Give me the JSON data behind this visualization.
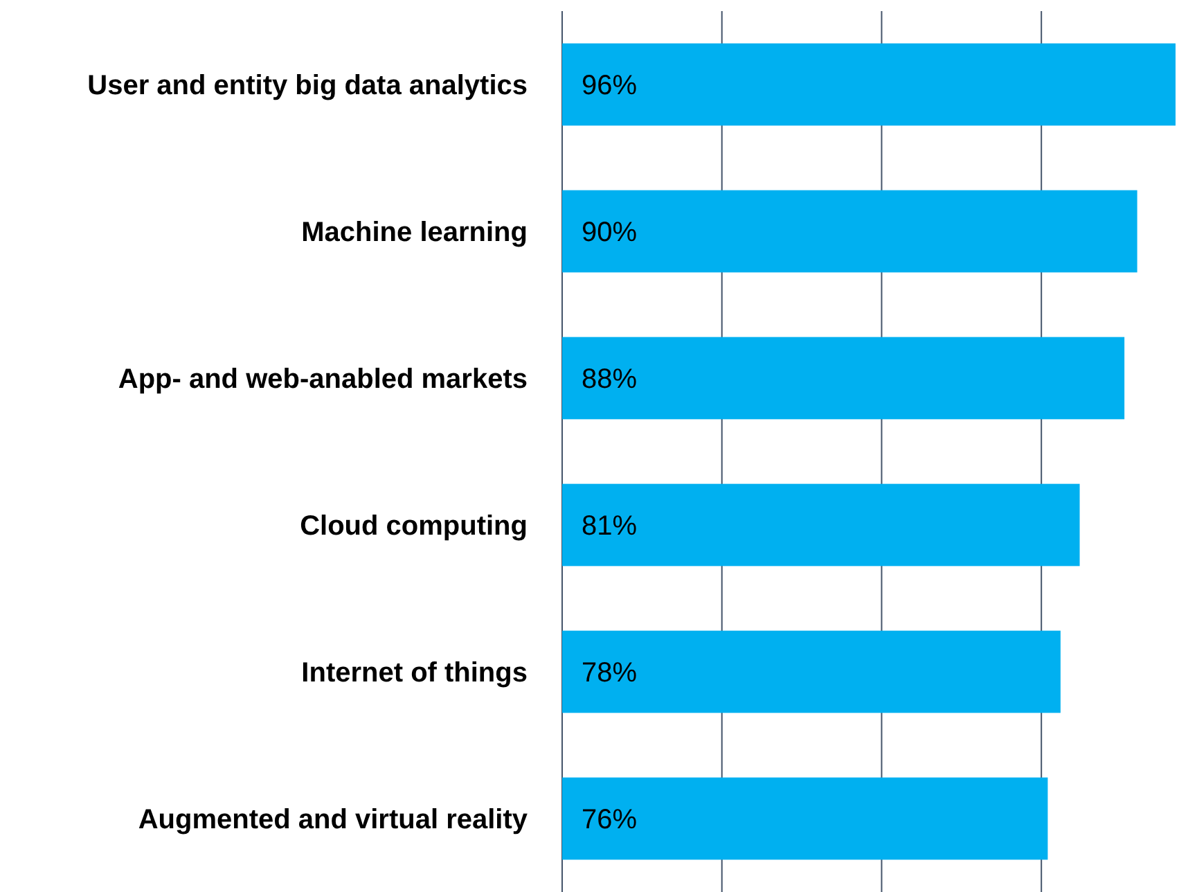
{
  "chart_data": {
    "type": "bar",
    "orientation": "horizontal",
    "categories": [
      "User and entity big data analytics",
      "Machine learning",
      "App- and web-anabled markets",
      "Cloud computing",
      "Internet of things",
      "Augmented and virtual reality"
    ],
    "values": [
      96,
      90,
      88,
      81,
      78,
      76
    ],
    "color": "#00b0f0",
    "value_labels": [
      "96%",
      "90%",
      "88%",
      "81%",
      "78%",
      "76%"
    ],
    "xticks": [
      {
        "value": 0,
        "label": null
      },
      {
        "value": 25,
        "label": null
      },
      {
        "value": 50,
        "label": null
      },
      {
        "value": 75,
        "label": null
      }
    ],
    "tick_labels": "y",
    "grid": "x"
  }
}
